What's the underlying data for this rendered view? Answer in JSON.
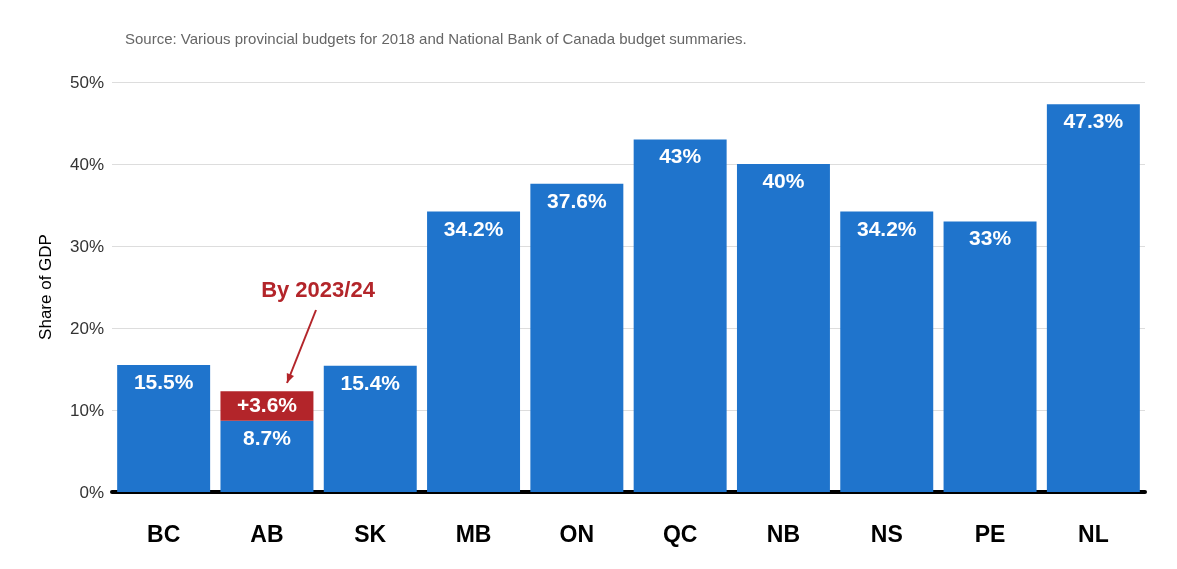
{
  "chart_data": {
    "type": "bar",
    "stacked": true,
    "ylabel": "Share of GDP",
    "categories": [
      "BC",
      "AB",
      "SK",
      "MB",
      "ON",
      "QC",
      "NB",
      "NS",
      "PE",
      "NL"
    ],
    "series": [
      {
        "color": "#1f74cc",
        "values": [
          15.5,
          8.7,
          15.4,
          34.2,
          37.6,
          43,
          40,
          34.2,
          33,
          47.3
        ],
        "value_labels": [
          "15.5%",
          "8.7%",
          "15.4%",
          "34.2%",
          "37.6%",
          "43%",
          "40%",
          "34.2%",
          "33%",
          "47.3%"
        ]
      },
      {
        "color": "#b3252a",
        "values": [
          null,
          3.6,
          null,
          null,
          null,
          null,
          null,
          null,
          null,
          null
        ],
        "value_labels": [
          null,
          "+3.6%",
          null,
          null,
          null,
          null,
          null,
          null,
          null,
          null
        ]
      }
    ],
    "ylim": [
      0,
      50
    ],
    "yticks": [
      {
        "value": 0,
        "label": "0%"
      },
      {
        "value": 10,
        "label": "10%"
      },
      {
        "value": 20,
        "label": "20%"
      },
      {
        "value": 30,
        "label": "30%"
      },
      {
        "value": 40,
        "label": "40%"
      },
      {
        "value": 50,
        "label": "50%"
      }
    ],
    "grid": "y",
    "annotations": [
      "Source: Various provincial budgets for 2018 and National Bank of Canada budget summaries.",
      "By 2023/24"
    ]
  }
}
